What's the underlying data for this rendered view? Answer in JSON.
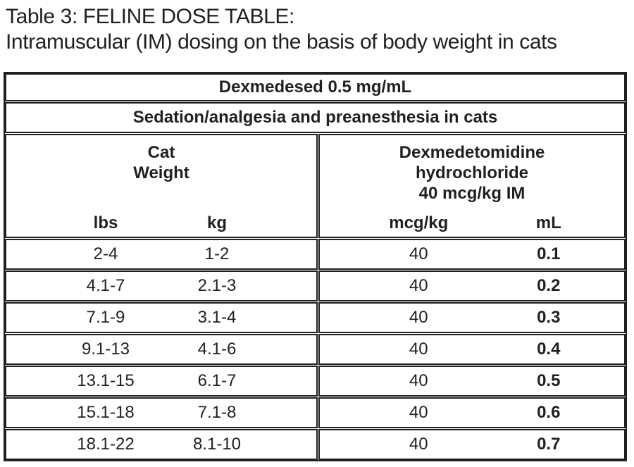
{
  "title": {
    "line1": "Table 3: FELINE DOSE TABLE:",
    "line2": "Intramuscular (IM) dosing on the basis of body weight in cats"
  },
  "table": {
    "product": "Dexmedesed 0.5 mg/mL",
    "indication": "Sedation/analgesia and preanesthesia in cats",
    "weight_group": {
      "line1": "Cat",
      "line2": "Weight",
      "col_lbs": "lbs",
      "col_kg": "kg"
    },
    "dose_group": {
      "line1": "Dexmedetomidine",
      "line2": "hydrochloride",
      "line3": "40 mcg/kg IM",
      "col_mcg": "mcg/kg",
      "col_ml": "mL"
    },
    "rows": [
      {
        "lbs": "2-4",
        "kg": "1-2",
        "mcg_per_kg": "40",
        "ml": "0.1"
      },
      {
        "lbs": "4.1-7",
        "kg": "2.1-3",
        "mcg_per_kg": "40",
        "ml": "0.2"
      },
      {
        "lbs": "7.1-9",
        "kg": "3.1-4",
        "mcg_per_kg": "40",
        "ml": "0.3"
      },
      {
        "lbs": "9.1-13",
        "kg": "4.1-6",
        "mcg_per_kg": "40",
        "ml": "0.4"
      },
      {
        "lbs": "13.1-15",
        "kg": "6.1-7",
        "mcg_per_kg": "40",
        "ml": "0.5"
      },
      {
        "lbs": "15.1-18",
        "kg": "7.1-8",
        "mcg_per_kg": "40",
        "ml": "0.6"
      },
      {
        "lbs": "18.1-22",
        "kg": "8.1-10",
        "mcg_per_kg": "40",
        "ml": "0.7"
      }
    ]
  },
  "colors": {
    "ink": "#231f20",
    "background": "#ffffff"
  }
}
